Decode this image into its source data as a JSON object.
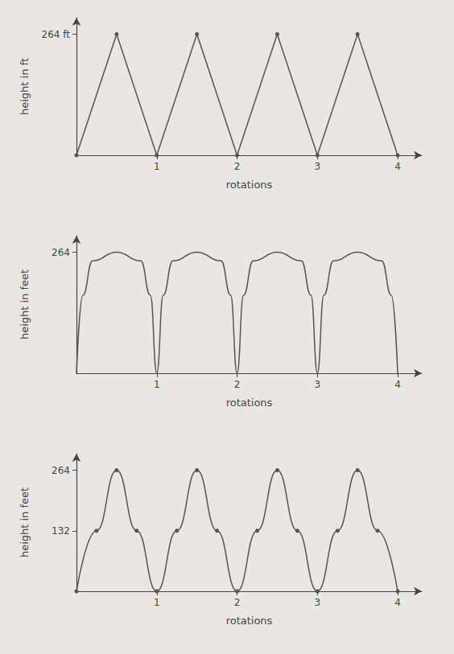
{
  "chart_data": [
    {
      "type": "line",
      "y_label": "height in ft",
      "x_label": "rotations",
      "x": [
        0,
        0.5,
        1,
        1.5,
        2,
        2.5,
        3,
        3.5,
        4
      ],
      "values": [
        0,
        264,
        0,
        264,
        0,
        264,
        0,
        264,
        0
      ],
      "color": "#555555",
      "marker": "circle",
      "line_style": "straight",
      "xlim": [
        0,
        4.3
      ],
      "xticks": [
        1,
        2,
        3,
        4
      ],
      "ylim": [
        0,
        300
      ],
      "yticks": [
        {
          "value": 264,
          "label": "264 ft"
        }
      ],
      "grid": false
    },
    {
      "type": "line",
      "y_label": "height in feet",
      "x_label": "rotations",
      "x": [
        0,
        0.08,
        0.2,
        0.5,
        0.8,
        0.92,
        1,
        1.08,
        1.2,
        1.5,
        1.8,
        1.92,
        2,
        2.08,
        2.2,
        2.5,
        2.8,
        2.92,
        3,
        3.08,
        3.2,
        3.5,
        3.8,
        3.92,
        4
      ],
      "values": [
        0,
        170,
        245,
        264,
        245,
        170,
        0,
        170,
        245,
        264,
        245,
        170,
        0,
        170,
        245,
        264,
        245,
        170,
        0,
        170,
        245,
        264,
        245,
        170,
        0
      ],
      "color": "#555555",
      "marker": "none",
      "line_style": "smooth",
      "xlim": [
        0,
        4.3
      ],
      "xticks": [
        1,
        2,
        3,
        4
      ],
      "ylim": [
        0,
        300
      ],
      "yticks": [
        264
      ],
      "grid": false
    },
    {
      "type": "line",
      "y_label": "height in feet",
      "x_label": "rotations",
      "x": [
        0,
        0.25,
        0.5,
        0.75,
        1,
        1.25,
        1.5,
        1.75,
        2,
        2.25,
        2.5,
        2.75,
        3,
        3.25,
        3.5,
        3.75,
        4
      ],
      "values": [
        0,
        132,
        264,
        132,
        0,
        132,
        264,
        132,
        0,
        132,
        264,
        132,
        0,
        132,
        264,
        132,
        0
      ],
      "color": "#555555",
      "marker": "circle",
      "line_style": "smooth",
      "xlim": [
        0,
        4.3
      ],
      "xticks": [
        1,
        2,
        3,
        4
      ],
      "ylim": [
        0,
        300
      ],
      "yticks": [
        132,
        264
      ],
      "grid": false
    }
  ]
}
